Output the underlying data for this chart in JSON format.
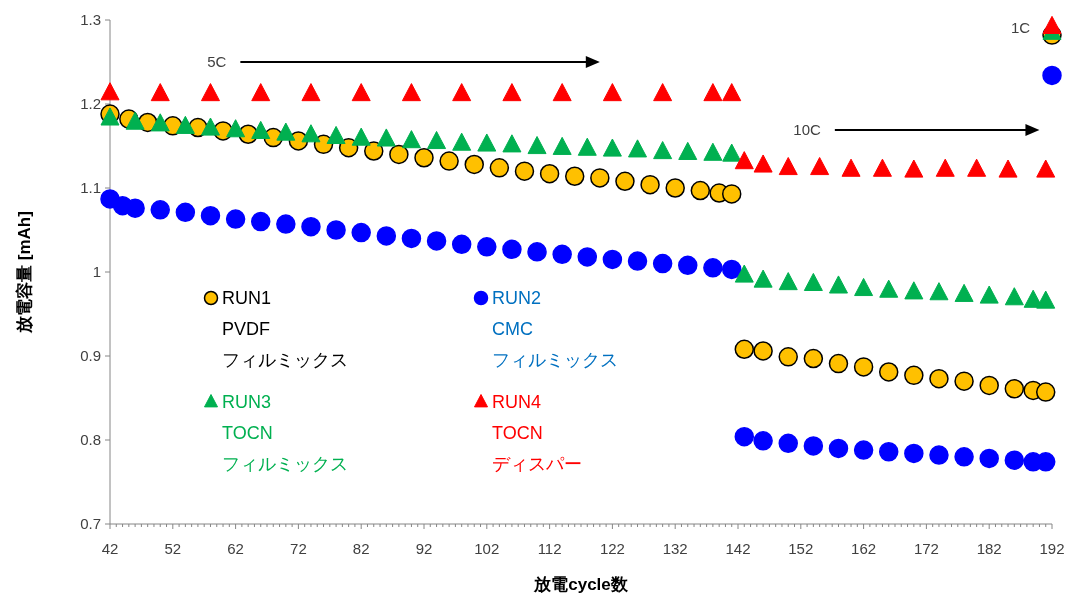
{
  "chart_data": {
    "type": "scatter",
    "xlabel": "放電cycle数",
    "ylabel": "放電容量 [mAh]",
    "xlim": [
      42,
      192
    ],
    "ylim": [
      0.7,
      1.3
    ],
    "xticks": [
      42,
      52,
      62,
      72,
      82,
      92,
      102,
      112,
      122,
      132,
      142,
      152,
      162,
      172,
      182,
      192
    ],
    "yticks": [
      0.7,
      0.8,
      0.9,
      {
        "value": 1,
        "label": "1"
      },
      1.1,
      1.2,
      1.3
    ],
    "grid": false,
    "legend": "left",
    "annotations": [
      "5C",
      "10C",
      "1C"
    ],
    "series": [
      {
        "name": "RUN1 PVDF フィルミックス",
        "color": "#ffc000",
        "marker": "circle",
        "x": [
          42,
          45,
          48,
          52,
          56,
          60,
          64,
          68,
          72,
          76,
          80,
          84,
          88,
          92,
          96,
          100,
          104,
          108,
          112,
          116,
          120,
          124,
          128,
          132,
          136,
          139,
          141,
          143,
          146,
          150,
          154,
          158,
          162,
          166,
          170,
          174,
          178,
          182,
          186,
          189,
          191,
          192
        ],
        "values": [
          1.188,
          1.182,
          1.178,
          1.174,
          1.172,
          1.168,
          1.164,
          1.16,
          1.156,
          1.152,
          1.148,
          1.144,
          1.14,
          1.136,
          1.132,
          1.128,
          1.124,
          1.12,
          1.117,
          1.114,
          1.112,
          1.108,
          1.104,
          1.1,
          1.097,
          1.094,
          1.093,
          0.908,
          0.906,
          0.899,
          0.897,
          0.891,
          0.887,
          0.881,
          0.877,
          0.873,
          0.87,
          0.865,
          0.861,
          0.859,
          0.857,
          1.282
        ]
      },
      {
        "name": "RUN2 CMC フィルミックス",
        "color": "#0000ff",
        "marker": "circle",
        "x": [
          42,
          44,
          46,
          50,
          54,
          58,
          62,
          66,
          70,
          74,
          78,
          82,
          86,
          90,
          94,
          98,
          102,
          106,
          110,
          114,
          118,
          122,
          126,
          130,
          134,
          138,
          141,
          143,
          146,
          150,
          154,
          158,
          162,
          166,
          170,
          174,
          178,
          182,
          186,
          189,
          191,
          192
        ],
        "values": [
          1.087,
          1.079,
          1.076,
          1.074,
          1.071,
          1.067,
          1.063,
          1.06,
          1.057,
          1.054,
          1.05,
          1.047,
          1.043,
          1.04,
          1.037,
          1.033,
          1.03,
          1.027,
          1.024,
          1.021,
          1.018,
          1.015,
          1.013,
          1.01,
          1.008,
          1.005,
          1.003,
          0.804,
          0.799,
          0.796,
          0.793,
          0.79,
          0.788,
          0.786,
          0.784,
          0.782,
          0.78,
          0.778,
          0.776,
          0.774,
          0.774,
          1.234
        ]
      },
      {
        "name": "RUN3 TOCN フィルミックス",
        "color": "#00b050",
        "marker": "triangle",
        "x": [
          42,
          46,
          50,
          54,
          58,
          62,
          66,
          70,
          74,
          78,
          82,
          86,
          90,
          94,
          98,
          102,
          106,
          110,
          114,
          118,
          122,
          126,
          130,
          134,
          138,
          141,
          143,
          146,
          150,
          154,
          158,
          162,
          166,
          170,
          174,
          178,
          182,
          186,
          189,
          191,
          192
        ],
        "values": [
          1.183,
          1.178,
          1.176,
          1.173,
          1.171,
          1.169,
          1.167,
          1.165,
          1.163,
          1.161,
          1.159,
          1.158,
          1.156,
          1.155,
          1.153,
          1.152,
          1.151,
          1.149,
          1.148,
          1.147,
          1.146,
          1.145,
          1.143,
          1.142,
          1.141,
          1.14,
          0.996,
          0.99,
          0.987,
          0.986,
          0.983,
          0.98,
          0.978,
          0.976,
          0.975,
          0.973,
          0.971,
          0.969,
          0.966,
          0.965,
          1.285
        ]
      },
      {
        "name": "RUN4 TOCN ディスパー",
        "color": "#ff0000",
        "marker": "triangle",
        "x": [
          42,
          50,
          58,
          66,
          74,
          82,
          90,
          98,
          106,
          114,
          122,
          130,
          138,
          141,
          143,
          146,
          150,
          155,
          160,
          165,
          170,
          175,
          180,
          185,
          191,
          192
        ],
        "values": [
          1.213,
          1.212,
          1.212,
          1.212,
          1.212,
          1.212,
          1.212,
          1.212,
          1.212,
          1.212,
          1.212,
          1.212,
          1.212,
          1.212,
          1.131,
          1.127,
          1.124,
          1.124,
          1.122,
          1.122,
          1.121,
          1.122,
          1.122,
          1.121,
          1.121,
          1.292
        ]
      }
    ]
  }
}
